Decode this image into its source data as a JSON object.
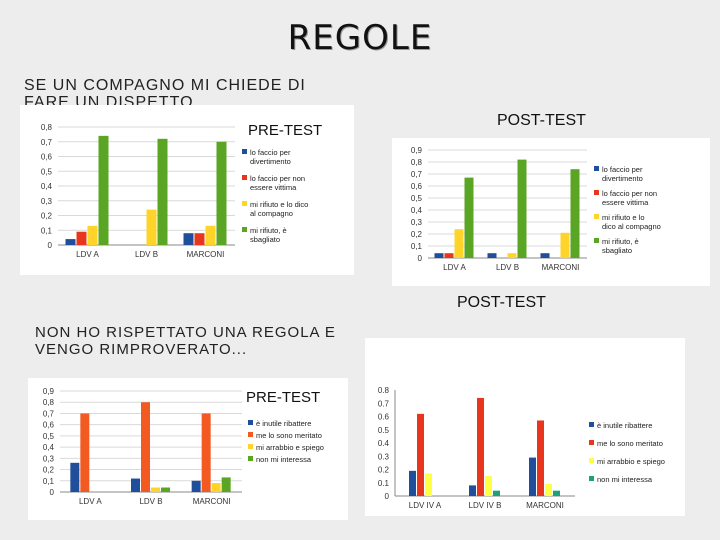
{
  "slide": {
    "title": "REGOLE",
    "caption_top": "SE UN COMPAGNO MI CHIEDE DI FARE UN DISPETTO...",
    "caption_bottom": "NON HO RISPETTATO UNA REGOLA E VENGO RIMPROVERATO...",
    "label_post_test_top": "POST-TEST",
    "label_post_test_bottom": "POST-TEST"
  },
  "colors": {
    "blue": "#1f4e9a",
    "red": "#e8361e",
    "orange_red": "#f25a22",
    "yellow": "#ffd42a",
    "light_yellow": "#ffff44",
    "green": "#5aa624",
    "teal": "#1aa37a"
  },
  "chart_data": [
    {
      "type": "bar",
      "title": "PRE-TEST",
      "categories": [
        "LDV A",
        "LDV B",
        "MARCONI"
      ],
      "ylim": [
        0,
        0.8
      ],
      "yticks": [
        "0",
        "0,1",
        "0,2",
        "0,3",
        "0,4",
        "0,5",
        "0,6",
        "0,7",
        "0,8"
      ],
      "legend_position": "right",
      "series": [
        {
          "name": "lo faccio per divertimento",
          "values": [
            0.04,
            0.0,
            0.08
          ],
          "color": "#1f4e9a"
        },
        {
          "name": "lo faccio per non essere vittima",
          "values": [
            0.09,
            0.0,
            0.08
          ],
          "color": "#e8361e"
        },
        {
          "name": "mi rifiuto e lo dico al compagno",
          "values": [
            0.13,
            0.24,
            0.13
          ],
          "color": "#ffd42a"
        },
        {
          "name": "mi rifiuto, è sbagliato",
          "values": [
            0.74,
            0.72,
            0.7
          ],
          "color": "#5aa624"
        }
      ]
    },
    {
      "type": "bar",
      "title": "",
      "categories": [
        "LDV A",
        "LDV B",
        "MARCONI"
      ],
      "ylim": [
        0,
        0.9
      ],
      "yticks": [
        "0",
        "0,1",
        "0,2",
        "0,3",
        "0,4",
        "0,5",
        "0,6",
        "0,7",
        "0,8",
        "0,9"
      ],
      "legend_position": "right",
      "series": [
        {
          "name": "lo faccio per divertimento",
          "values": [
            0.04,
            0.04,
            0.04
          ],
          "color": "#1f4e9a"
        },
        {
          "name": "lo faccio per non essere vittima",
          "values": [
            0.04,
            0.0,
            0.0
          ],
          "color": "#e8361e"
        },
        {
          "name": "mi rifiuto e lo dico al compagno",
          "values": [
            0.24,
            0.04,
            0.21
          ],
          "color": "#ffd42a"
        },
        {
          "name": "mi rifiuto, è sbagliato",
          "values": [
            0.67,
            0.82,
            0.74
          ],
          "color": "#5aa624"
        }
      ]
    },
    {
      "type": "bar",
      "title": "PRE-TEST",
      "categories": [
        "LDV A",
        "LDV B",
        "MARCONI"
      ],
      "ylim": [
        0,
        0.9
      ],
      "yticks": [
        "0",
        "0,1",
        "0,2",
        "0,3",
        "0,4",
        "0,5",
        "0,6",
        "0,7",
        "0,8",
        "0,9"
      ],
      "legend_position": "right",
      "series": [
        {
          "name": "è inutile ribattere",
          "values": [
            0.26,
            0.12,
            0.1
          ],
          "color": "#1f4e9a"
        },
        {
          "name": "me lo sono meritato",
          "values": [
            0.7,
            0.8,
            0.7
          ],
          "color": "#f25a22"
        },
        {
          "name": "mi arrabbio e spiego",
          "values": [
            0.0,
            0.04,
            0.08
          ],
          "color": "#ffd42a"
        },
        {
          "name": "non mi interessa",
          "values": [
            0.0,
            0.04,
            0.13
          ],
          "color": "#5aa624"
        }
      ]
    },
    {
      "type": "bar",
      "title": "",
      "categories": [
        "LDV IV A",
        "LDV IV B",
        "MARCONI"
      ],
      "ylim": [
        0,
        0.8
      ],
      "yticks": [
        "0",
        "0.1",
        "0.2",
        "0.3",
        "0.4",
        "0.5",
        "0.6",
        "0.7",
        "0.8"
      ],
      "legend_position": "right",
      "series": [
        {
          "name": "è inutile ribattere",
          "values": [
            0.19,
            0.08,
            0.29
          ],
          "color": "#1f4e9a"
        },
        {
          "name": "me lo sono meritato",
          "values": [
            0.62,
            0.74,
            0.57
          ],
          "color": "#e8361e"
        },
        {
          "name": "mi arrabbio e spiego",
          "values": [
            0.17,
            0.15,
            0.09
          ],
          "color": "#ffff44"
        },
        {
          "name": "non mi interessa",
          "values": [
            0.0,
            0.04,
            0.04
          ],
          "color": "#1aa37a"
        }
      ]
    }
  ]
}
